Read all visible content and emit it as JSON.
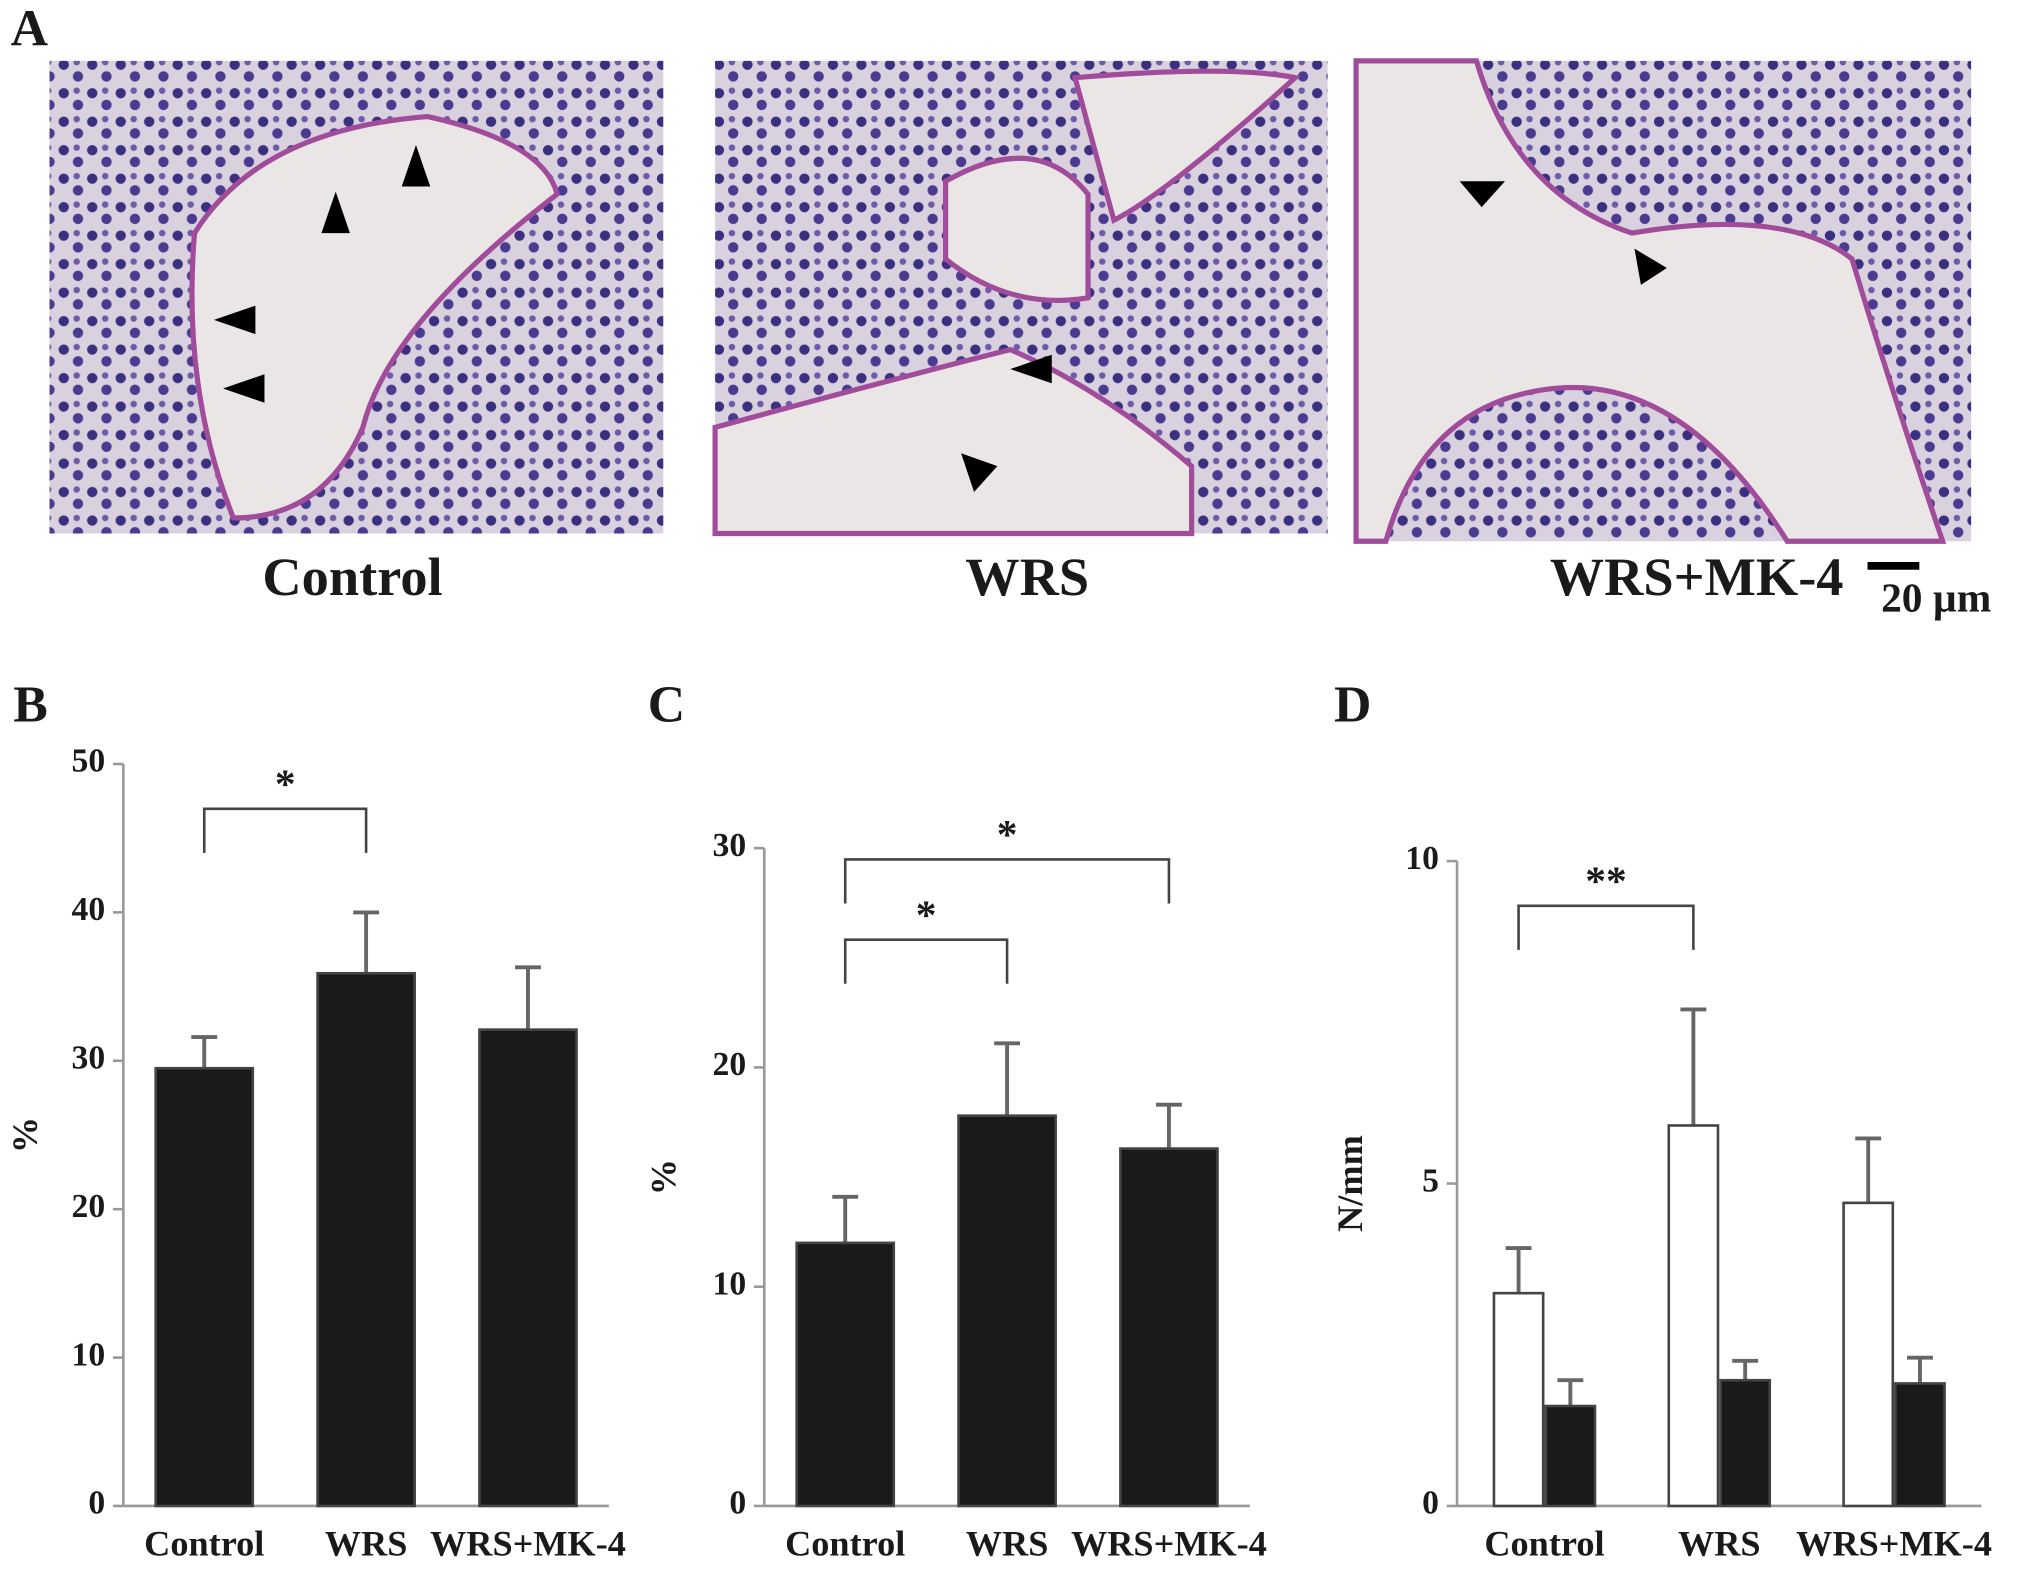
{
  "panel_a": {
    "label": "A",
    "images": [
      "Control",
      "WRS",
      "WRS+MK-4"
    ],
    "scale_bar": "20 µm"
  },
  "chart_data": [
    {
      "type": "bar",
      "label": "B",
      "ylabel": "%",
      "categories": [
        "Control",
        "WRS",
        "WRS+MK-4"
      ],
      "series": [
        {
          "color": "#1a1a1a",
          "values": [
            29.5,
            35.9,
            32.1
          ],
          "errors": [
            2.1,
            4.1,
            4.2
          ]
        }
      ],
      "ylim": [
        0,
        50
      ],
      "yticks": [
        0,
        10,
        20,
        30,
        40,
        50
      ],
      "annotations": [
        {
          "text": "*",
          "between": [
            "Control",
            "WRS"
          ]
        }
      ]
    },
    {
      "type": "bar",
      "label": "C",
      "ylabel": "%",
      "categories": [
        "Control",
        "WRS",
        "WRS+MK-4"
      ],
      "series": [
        {
          "color": "#1a1a1a",
          "values": [
            12.0,
            17.8,
            16.3
          ],
          "errors": [
            2.1,
            3.3,
            2.0
          ]
        }
      ],
      "ylim": [
        0,
        30
      ],
      "yticks": [
        0,
        10,
        20,
        30
      ],
      "annotations": [
        {
          "text": "*",
          "between": [
            "Control",
            "WRS"
          ]
        },
        {
          "text": "*",
          "between": [
            "Control",
            "WRS+MK-4"
          ]
        }
      ]
    },
    {
      "type": "bar",
      "label": "D",
      "ylabel": "N/mm",
      "categories": [
        "Control",
        "WRS",
        "WRS+MK-4"
      ],
      "series": [
        {
          "color": "#ffffff",
          "values": [
            3.3,
            5.9,
            4.7
          ],
          "errors": [
            0.7,
            1.8,
            1.0
          ]
        },
        {
          "color": "#1a1a1a",
          "values": [
            1.55,
            1.95,
            1.9
          ],
          "errors": [
            0.4,
            0.3,
            0.4
          ]
        }
      ],
      "ylim": [
        0,
        10
      ],
      "yticks": [
        0,
        5,
        10
      ],
      "annotations": [
        {
          "text": "**",
          "between": [
            "Control",
            "WRS"
          ]
        }
      ]
    }
  ]
}
